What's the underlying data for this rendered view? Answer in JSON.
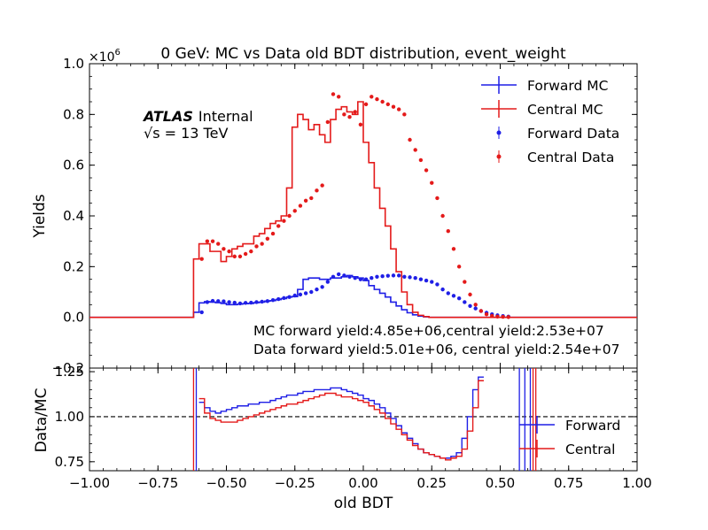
{
  "chart_data": {
    "type": "line",
    "title": "0 GeV: MC vs Data old BDT distribution, event_weight",
    "xlabel": "old BDT",
    "xlim": [
      -1.0,
      1.0
    ],
    "x_ticks": [
      "−1.00",
      "−0.75",
      "−0.50",
      "−0.25",
      "0.00",
      "0.25",
      "0.50",
      "0.75",
      "1.00"
    ],
    "bin_edges_start": -1.0,
    "bin_width": 0.02,
    "main": {
      "ylabel": "Yields",
      "ylim": [
        -0.2,
        1.0
      ],
      "y_scale_label": "×10",
      "y_scale_exp": "6",
      "y_ticks": [
        "−0.2",
        "0.0",
        "0.2",
        "0.4",
        "0.6",
        "0.8",
        "1.0"
      ],
      "legend_position": "top-right",
      "atlas_label": "ATLAS",
      "atlas_tag": "Internal",
      "energy_label": "√s = 13 TeV",
      "annotations": [
        "MC forward yield:4.85e+06,central yield:2.53e+07",
        "Data forward yield:5.01e+06, central yield:2.54e+07"
      ],
      "series": [
        {
          "name": "Forward MC",
          "style": "step",
          "color": "#1f1fe6",
          "values": [
            0,
            0,
            0,
            0,
            0,
            0,
            0,
            0,
            0,
            0,
            0,
            0,
            0,
            0,
            0,
            0,
            0,
            0,
            0,
            0.02,
            0.057,
            0.062,
            0.06,
            0.058,
            0.055,
            0.05,
            0.05,
            0.052,
            0.054,
            0.055,
            0.058,
            0.06,
            0.064,
            0.066,
            0.07,
            0.074,
            0.08,
            0.082,
            0.11,
            0.15,
            0.155,
            0.155,
            0.15,
            0.15,
            0.155,
            0.155,
            0.16,
            0.165,
            0.16,
            0.155,
            0.145,
            0.125,
            0.11,
            0.095,
            0.08,
            0.06,
            0.045,
            0.03,
            0.018,
            0.01,
            0.005,
            0.002,
            0,
            0,
            0,
            0,
            0,
            0,
            0,
            0,
            0,
            0,
            0,
            0,
            0,
            0,
            0,
            0,
            0,
            0,
            0,
            0,
            0,
            0,
            0,
            0,
            0,
            0,
            0,
            0,
            0,
            0,
            0,
            0,
            0,
            0,
            0,
            0,
            0,
            0
          ]
        },
        {
          "name": "Central MC",
          "style": "step",
          "color": "#e41a1a",
          "values": [
            0,
            0,
            0,
            0,
            0,
            0,
            0,
            0,
            0,
            0,
            0,
            0,
            0,
            0,
            0,
            0,
            0,
            0,
            0,
            0.23,
            0.29,
            0.29,
            0.26,
            0.26,
            0.22,
            0.24,
            0.27,
            0.28,
            0.29,
            0.29,
            0.32,
            0.33,
            0.35,
            0.37,
            0.38,
            0.4,
            0.51,
            0.75,
            0.8,
            0.78,
            0.74,
            0.76,
            0.72,
            0.69,
            0.78,
            0.82,
            0.83,
            0.81,
            0.8,
            0.85,
            0.69,
            0.61,
            0.51,
            0.43,
            0.36,
            0.27,
            0.18,
            0.1,
            0.05,
            0.02,
            0.008,
            0.003,
            0,
            0,
            0,
            0,
            0,
            0,
            0,
            0,
            0,
            0,
            0,
            0,
            0,
            0,
            0,
            0,
            0,
            0,
            0,
            0,
            0,
            0,
            0,
            0,
            0,
            0,
            0,
            0,
            0,
            0,
            0,
            0,
            0,
            0,
            0,
            0,
            0,
            0
          ]
        },
        {
          "name": "Forward Data",
          "style": "points",
          "color": "#1f1fe6",
          "x": [
            -0.59,
            -0.57,
            -0.55,
            -0.53,
            -0.51,
            -0.49,
            -0.47,
            -0.45,
            -0.43,
            -0.41,
            -0.39,
            -0.37,
            -0.35,
            -0.33,
            -0.31,
            -0.29,
            -0.27,
            -0.25,
            -0.23,
            -0.21,
            -0.19,
            -0.17,
            -0.15,
            -0.13,
            -0.11,
            -0.09,
            -0.07,
            -0.05,
            -0.03,
            -0.01,
            0.01,
            0.03,
            0.05,
            0.07,
            0.09,
            0.11,
            0.13,
            0.15,
            0.17,
            0.19,
            0.21,
            0.23,
            0.25,
            0.27,
            0.29,
            0.31,
            0.33,
            0.35,
            0.37,
            0.39,
            0.41,
            0.43,
            0.45,
            0.47,
            0.49,
            0.51,
            0.53
          ],
          "values": [
            0.02,
            0.06,
            0.065,
            0.064,
            0.063,
            0.06,
            0.058,
            0.055,
            0.057,
            0.058,
            0.06,
            0.062,
            0.064,
            0.068,
            0.072,
            0.076,
            0.08,
            0.086,
            0.09,
            0.095,
            0.1,
            0.11,
            0.12,
            0.14,
            0.16,
            0.17,
            0.165,
            0.16,
            0.155,
            0.15,
            0.15,
            0.155,
            0.16,
            0.162,
            0.164,
            0.165,
            0.165,
            0.16,
            0.158,
            0.155,
            0.15,
            0.145,
            0.14,
            0.13,
            0.11,
            0.095,
            0.085,
            0.075,
            0.06,
            0.045,
            0.035,
            0.025,
            0.018,
            0.012,
            0.008,
            0.005,
            0.003
          ]
        },
        {
          "name": "Central Data",
          "style": "points",
          "color": "#e41a1a",
          "x": [
            -0.59,
            -0.57,
            -0.55,
            -0.53,
            -0.51,
            -0.49,
            -0.47,
            -0.45,
            -0.43,
            -0.41,
            -0.39,
            -0.37,
            -0.35,
            -0.33,
            -0.31,
            -0.29,
            -0.27,
            -0.25,
            -0.23,
            -0.21,
            -0.19,
            -0.17,
            -0.15,
            -0.13,
            -0.11,
            -0.09,
            -0.07,
            -0.05,
            -0.03,
            -0.01,
            0.01,
            0.03,
            0.05,
            0.07,
            0.09,
            0.11,
            0.13,
            0.15,
            0.17,
            0.19,
            0.21,
            0.23,
            0.25,
            0.27,
            0.29,
            0.31,
            0.33,
            0.35,
            0.37,
            0.39,
            0.41,
            0.43,
            0.45,
            0.47,
            0.49,
            0.51,
            0.53
          ],
          "values": [
            0.23,
            0.3,
            0.3,
            0.29,
            0.27,
            0.26,
            0.24,
            0.24,
            0.25,
            0.26,
            0.28,
            0.29,
            0.31,
            0.33,
            0.36,
            0.38,
            0.4,
            0.42,
            0.44,
            0.46,
            0.47,
            0.5,
            0.52,
            0.77,
            0.88,
            0.87,
            0.8,
            0.79,
            0.81,
            0.76,
            0.84,
            0.87,
            0.86,
            0.85,
            0.84,
            0.83,
            0.82,
            0.8,
            0.7,
            0.66,
            0.62,
            0.58,
            0.53,
            0.47,
            0.4,
            0.34,
            0.27,
            0.2,
            0.14,
            0.09,
            0.05,
            0.025,
            0.012,
            0.006,
            0.003,
            0.002,
            0.001
          ]
        }
      ]
    },
    "ratio": {
      "ylabel": "Data/MC",
      "ylim": [
        0.7,
        1.27
      ],
      "y_ticks": [
        "0.75",
        "1.00",
        "1.25"
      ],
      "reference_line": 1.0,
      "legend_position": "lower-right",
      "series": [
        {
          "name": "Forward",
          "color": "#1f1fe6",
          "x_start": -0.6,
          "values": [
            1.08,
            1.05,
            1.03,
            1.02,
            1.03,
            1.04,
            1.05,
            1.06,
            1.06,
            1.07,
            1.07,
            1.08,
            1.08,
            1.09,
            1.1,
            1.11,
            1.12,
            1.12,
            1.13,
            1.14,
            1.14,
            1.15,
            1.15,
            1.15,
            1.16,
            1.16,
            1.15,
            1.14,
            1.13,
            1.12,
            1.1,
            1.09,
            1.07,
            1.05,
            1.02,
            0.99,
            0.95,
            0.91,
            0.88,
            0.85,
            0.82,
            0.8,
            0.79,
            0.78,
            0.77,
            0.77,
            0.78,
            0.8,
            0.88,
            1.0,
            1.15,
            1.22
          ]
        },
        {
          "name": "Central",
          "color": "#e41a1a",
          "x_start": -0.6,
          "values": [
            1.1,
            1.02,
            0.99,
            0.98,
            0.97,
            0.97,
            0.97,
            0.98,
            0.99,
            1.0,
            1.01,
            1.02,
            1.03,
            1.04,
            1.05,
            1.06,
            1.07,
            1.07,
            1.08,
            1.09,
            1.1,
            1.11,
            1.12,
            1.13,
            1.13,
            1.12,
            1.11,
            1.11,
            1.1,
            1.09,
            1.08,
            1.06,
            1.04,
            1.02,
            0.99,
            0.96,
            0.93,
            0.9,
            0.87,
            0.84,
            0.82,
            0.8,
            0.79,
            0.78,
            0.77,
            0.76,
            0.77,
            0.78,
            0.82,
            0.92,
            1.05,
            1.2
          ]
        }
      ]
    }
  }
}
